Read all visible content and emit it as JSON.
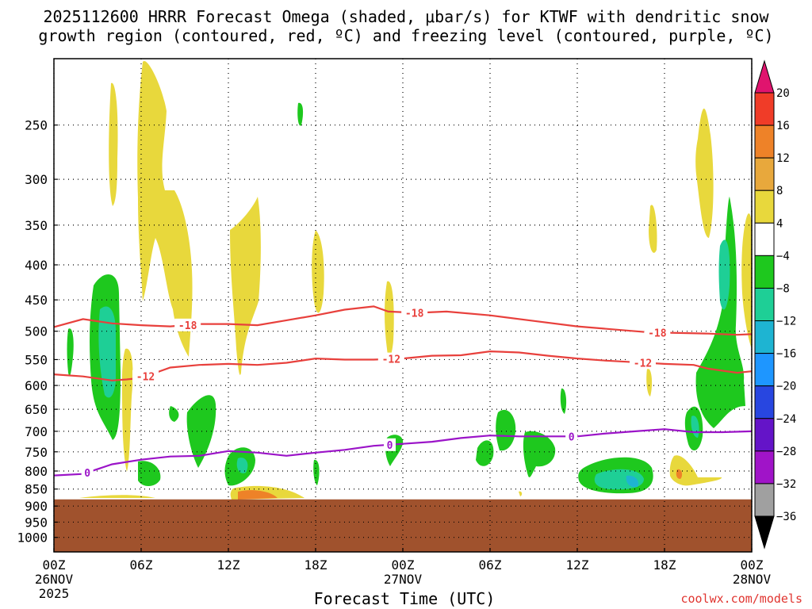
{
  "chart_data": {
    "type": "heatmap",
    "title_line1": "2025112600 HRRR Forecast Omega (shaded, μbar/s) for KTWF with dendritic snow",
    "title_line2": "growth region (contoured, red, ºC) and freezing level (contoured, purple, ºC)",
    "xlabel": "Forecast Time (UTC)",
    "credit": "coolwx.com/models",
    "x_ticks": [
      {
        "hour": 0,
        "label": "00Z",
        "date": "26NOV",
        "year": "2025"
      },
      {
        "hour": 6,
        "label": "06Z"
      },
      {
        "hour": 12,
        "label": "12Z"
      },
      {
        "hour": 18,
        "label": "18Z"
      },
      {
        "hour": 24,
        "label": "00Z",
        "date": "27NOV"
      },
      {
        "hour": 30,
        "label": "06Z"
      },
      {
        "hour": 36,
        "label": "12Z"
      },
      {
        "hour": 42,
        "label": "18Z"
      },
      {
        "hour": 48,
        "label": "00Z",
        "date": "28NOV"
      }
    ],
    "xlim": [
      0,
      48
    ],
    "y_axis": {
      "scale": "log-pressure",
      "ylim_hPa": [
        1050,
        200
      ],
      "ticks": [
        250,
        300,
        350,
        400,
        450,
        500,
        550,
        600,
        650,
        700,
        750,
        800,
        850,
        900,
        950,
        1000
      ]
    },
    "ground_level_hPa": 880,
    "ground_color": "#a0522d",
    "colorbar": {
      "tick_labels": [
        20,
        16,
        12,
        8,
        4,
        -4,
        -8,
        -12,
        -16,
        -20,
        -24,
        -28,
        -32,
        -36
      ],
      "colors": [
        "#e0146e",
        "#f03c28",
        "#ee8228",
        "#e8a83c",
        "#e8d83c",
        "#ffffff",
        "#1ec81e",
        "#1ecf96",
        "#1eb4d2",
        "#1e96ff",
        "#2846e0",
        "#6414c8",
        "#a014c8",
        "#a0a0a0",
        "#000000"
      ]
    },
    "contours": [
      {
        "name": "-18",
        "color": "#e8403c",
        "points": [
          [
            0,
            493
          ],
          [
            2,
            480
          ],
          [
            4,
            487
          ],
          [
            6,
            490
          ],
          [
            8,
            492
          ],
          [
            10,
            488
          ],
          [
            12,
            488
          ],
          [
            14,
            490
          ],
          [
            16,
            482
          ],
          [
            18,
            474
          ],
          [
            20,
            465
          ],
          [
            22,
            460
          ],
          [
            23,
            468
          ],
          [
            25,
            470
          ],
          [
            27,
            468
          ],
          [
            30,
            474
          ],
          [
            33,
            483
          ],
          [
            36,
            492
          ],
          [
            39,
            498
          ],
          [
            41,
            502
          ],
          [
            43,
            503
          ],
          [
            45,
            504
          ],
          [
            47,
            506
          ],
          [
            48,
            505
          ]
        ],
        "label_hours": [
          9.2,
          24.8,
          41.5
        ]
      },
      {
        "name": "-12",
        "color": "#e8403c",
        "points": [
          [
            0,
            578
          ],
          [
            2,
            582
          ],
          [
            4,
            590
          ],
          [
            5,
            588
          ],
          [
            6,
            585
          ],
          [
            8,
            565
          ],
          [
            10,
            560
          ],
          [
            12,
            558
          ],
          [
            14,
            560
          ],
          [
            16,
            556
          ],
          [
            18,
            548
          ],
          [
            20,
            550
          ],
          [
            22,
            550
          ],
          [
            24,
            548
          ],
          [
            26,
            543
          ],
          [
            28,
            542
          ],
          [
            30,
            535
          ],
          [
            32,
            537
          ],
          [
            34,
            543
          ],
          [
            36,
            548
          ],
          [
            38,
            552
          ],
          [
            40,
            555
          ],
          [
            42,
            558
          ],
          [
            44,
            560
          ],
          [
            45,
            567
          ],
          [
            47,
            575
          ],
          [
            48,
            572
          ]
        ],
        "label_hours": [
          6.3,
          23.2,
          40.5
        ]
      },
      {
        "name": "0",
        "color": "#9b14c8",
        "points": [
          [
            0,
            812
          ],
          [
            2,
            808
          ],
          [
            4,
            782
          ],
          [
            6,
            770
          ],
          [
            8,
            762
          ],
          [
            10,
            760
          ],
          [
            12,
            748
          ],
          [
            14,
            752
          ],
          [
            16,
            760
          ],
          [
            18,
            752
          ],
          [
            20,
            745
          ],
          [
            22,
            735
          ],
          [
            24,
            730
          ],
          [
            26,
            725
          ],
          [
            28,
            716
          ],
          [
            30,
            710
          ],
          [
            32,
            712
          ],
          [
            34,
            712
          ],
          [
            36,
            712
          ],
          [
            38,
            705
          ],
          [
            40,
            700
          ],
          [
            42,
            695
          ],
          [
            44,
            702
          ],
          [
            46,
            702
          ],
          [
            48,
            700
          ]
        ],
        "label_hours": [
          2.3,
          23.1,
          35.6
        ]
      }
    ]
  }
}
